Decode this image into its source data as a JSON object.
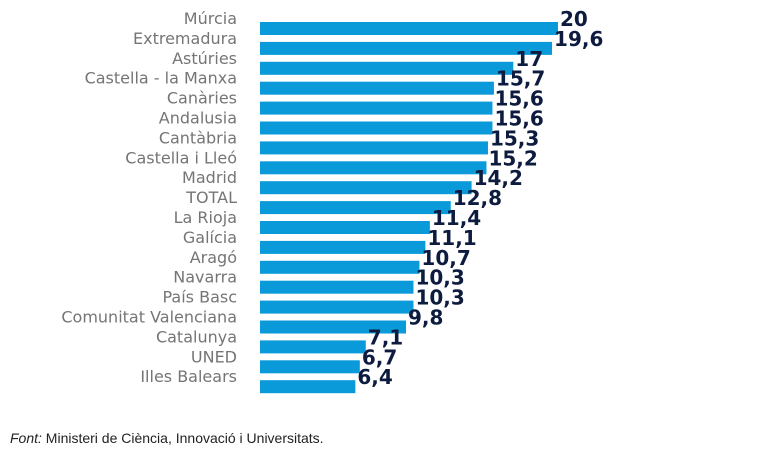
{
  "chart_data": {
    "type": "bar",
    "orientation": "horizontal",
    "categories": [
      "Múrcia",
      "Extremadura",
      "Astúries",
      "Castella - la Manxa",
      "Canàries",
      "Andalusia",
      "Cantàbria",
      "Castella i Lleó",
      "Madrid",
      "TOTAL",
      "La Rioja",
      "Galícia",
      "Aragó",
      "Navarra",
      "País Basc",
      "Comunitat Valenciana",
      "Catalunya",
      "UNED",
      "Illes Balears"
    ],
    "values": [
      20,
      19.6,
      17,
      15.7,
      15.6,
      15.6,
      15.3,
      15.2,
      14.2,
      12.8,
      11.4,
      11.1,
      10.7,
      10.3,
      10.3,
      9.8,
      7.1,
      6.7,
      6.4
    ],
    "value_labels": [
      "20",
      "19,6",
      "17",
      "15,7",
      "15,6",
      "15,6",
      "15,3",
      "15,2",
      "14,2",
      "12,8",
      "11,4",
      "11,1",
      "10,7",
      "10,3",
      "10,3",
      "9,8",
      "7,1",
      "6,7",
      "6,4"
    ],
    "xlim": [
      0,
      20
    ],
    "grid": false,
    "legend": "none",
    "bar_color": "#0a9ad9",
    "value_label_color": "#0d1b3e",
    "category_label_color": "#757575"
  },
  "source": {
    "prefix": "Font:",
    "text": " Ministeri de Ciència, Innovació i Universitats."
  }
}
